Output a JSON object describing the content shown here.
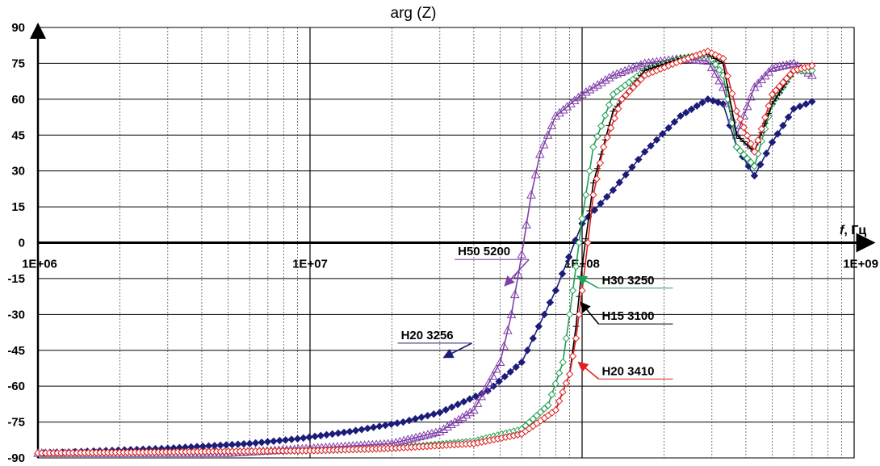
{
  "chart_data": {
    "type": "line",
    "title": "arg (Z)",
    "xlabel": "f, Гц",
    "xlabel_italic": "f",
    "xlabel_unit": ", Гц",
    "ylabel": "",
    "x_scale": "log",
    "xlim": [
      1000000,
      1000000000
    ],
    "ylim": [
      -90,
      90
    ],
    "grid": true,
    "x_ticks": [
      1000000,
      10000000,
      100000000,
      1000000000
    ],
    "x_tick_labels": [
      "1E+06",
      "1E+07",
      "1E+08",
      "1E+09"
    ],
    "y_ticks": [
      90,
      75,
      60,
      45,
      30,
      15,
      0,
      -15,
      -30,
      -45,
      -60,
      -75,
      -90
    ],
    "y_tick_labels": [
      "90",
      "75",
      "60",
      "45",
      "30",
      "15",
      "0",
      "-15",
      "-30",
      "-45",
      "-60",
      "-75",
      "-90"
    ],
    "series": [
      {
        "name": "Н20 3256",
        "color": "#1c1c7a",
        "marker": "diamond-filled",
        "label_at": [
          21000000,
          -42
        ],
        "arrow_to": [
          31000000,
          -48
        ],
        "x": [
          1000000,
          3000000,
          6000000,
          9000000,
          14000000,
          22000000,
          30000000,
          45000000,
          60000000,
          80000000,
          100000000,
          130000000,
          170000000,
          230000000,
          290000000,
          330000000,
          370000000,
          430000000,
          500000000,
          600000000,
          700000000
        ],
        "y": [
          -88,
          -86,
          -84,
          -82,
          -79,
          -75,
          -71,
          -62,
          -50,
          -20,
          8,
          22,
          38,
          53,
          60,
          58,
          40,
          28,
          42,
          56,
          59
        ]
      },
      {
        "name": "Н50 5200",
        "color": "#8040a8",
        "marker": "triangle-open",
        "label_at": [
          34000000,
          -7
        ],
        "arrow_to": [
          52000000,
          -18
        ],
        "x": [
          1000000,
          5000000,
          10000000,
          20000000,
          30000000,
          40000000,
          50000000,
          55000000,
          60000000,
          65000000,
          70000000,
          80000000,
          100000000,
          130000000,
          170000000,
          230000000,
          290000000,
          330000000,
          370000000,
          430000000,
          500000000,
          600000000,
          700000000
        ],
        "y": [
          -88,
          -88,
          -86,
          -84,
          -79,
          -70,
          -50,
          -30,
          -5,
          20,
          37,
          53,
          62,
          70,
          75,
          77,
          76,
          65,
          45,
          65,
          73,
          75,
          70
        ]
      },
      {
        "name": "Н30 3250",
        "color": "#20a050",
        "marker": "diamond-open",
        "label_at": [
          115000000,
          -19
        ],
        "arrow_to": [
          96000000,
          -14
        ],
        "x": [
          1000000,
          10000000,
          20000000,
          40000000,
          60000000,
          75000000,
          85000000,
          90000000,
          95000000,
          100000000,
          110000000,
          130000000,
          170000000,
          230000000,
          290000000,
          330000000,
          370000000,
          430000000,
          500000000,
          600000000,
          700000000
        ],
        "y": [
          -88,
          -87,
          -86,
          -83,
          -78,
          -68,
          -50,
          -30,
          -10,
          10,
          40,
          62,
          72,
          77,
          79,
          70,
          40,
          32,
          58,
          72,
          72
        ]
      },
      {
        "name": "Н15 3100",
        "color": "#000000",
        "marker": "plus",
        "label_at": [
          115000000,
          -34
        ],
        "arrow_to": [
          99000000,
          -25
        ],
        "x": [
          1000000,
          10000000,
          20000000,
          40000000,
          60000000,
          80000000,
          90000000,
          95000000,
          100000000,
          110000000,
          130000000,
          170000000,
          230000000,
          290000000,
          330000000,
          370000000,
          430000000,
          500000000,
          600000000,
          700000000
        ],
        "y": [
          -88,
          -87,
          -86,
          -84,
          -80,
          -70,
          -55,
          -35,
          -10,
          25,
          55,
          72,
          77,
          79,
          75,
          45,
          38,
          58,
          72,
          74
        ]
      },
      {
        "name": "Н20 3410",
        "color": "#e02020",
        "marker": "diamond-open",
        "label_at": [
          115000000,
          -57
        ],
        "arrow_to": [
          97000000,
          -50
        ],
        "x": [
          1000000,
          10000000,
          20000000,
          40000000,
          60000000,
          80000000,
          90000000,
          95000000,
          100000000,
          105000000,
          110000000,
          120000000,
          140000000,
          170000000,
          230000000,
          290000000,
          330000000,
          370000000,
          430000000,
          500000000,
          600000000,
          700000000
        ],
        "y": [
          -88,
          -87,
          -86,
          -84,
          -80,
          -70,
          -55,
          -40,
          -20,
          0,
          20,
          40,
          60,
          70,
          76,
          80,
          77,
          55,
          38,
          62,
          72,
          74
        ]
      }
    ]
  }
}
